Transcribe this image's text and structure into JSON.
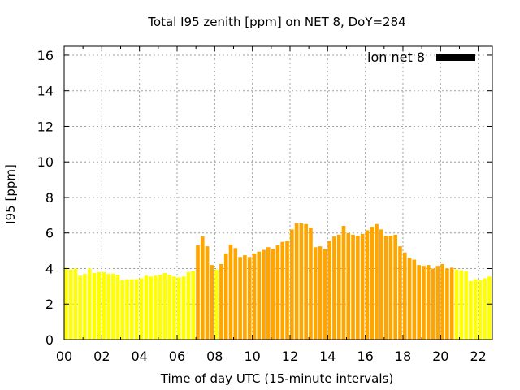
{
  "chart_data": {
    "type": "bar",
    "title": "Total I95 zenith [ppm] on NET 8, DoY=284",
    "xlabel": "Time of day UTC (15-minute intervals)",
    "ylabel": "I95 [ppm]",
    "xlim": [
      0,
      22.75
    ],
    "ylim": [
      0,
      16.5
    ],
    "x_ticks": [
      "00",
      "02",
      "04",
      "06",
      "08",
      "10",
      "12",
      "14",
      "16",
      "18",
      "20",
      "22"
    ],
    "y_ticks": [
      "0",
      "2",
      "4",
      "6",
      "8",
      "10",
      "12",
      "14",
      "16"
    ],
    "grid": true,
    "legend": {
      "label": "ion net 8",
      "color": "#000000",
      "position": "top-right"
    },
    "colors": {
      "low": "#ffff00",
      "high": "#ffa500"
    },
    "interval_hours": 0.25,
    "series": [
      {
        "values": [
          4.05,
          3.95,
          4.0,
          3.6,
          3.7,
          4.0,
          3.75,
          3.8,
          3.8,
          3.7,
          3.7,
          3.65,
          3.35,
          3.4,
          3.4,
          3.4,
          3.45,
          3.6,
          3.55,
          3.6,
          3.65,
          3.75,
          3.65,
          3.55,
          3.5,
          3.55,
          3.8,
          3.85,
          5.3,
          5.8,
          5.25,
          4.2,
          3.95,
          4.25,
          4.85,
          5.35,
          5.15,
          4.65,
          4.75,
          4.65,
          4.85,
          4.95,
          5.05,
          5.2,
          5.1,
          5.3,
          5.5,
          5.55,
          6.2,
          6.55,
          6.55,
          6.5,
          6.3,
          5.2,
          5.25,
          5.1,
          5.55,
          5.8,
          5.9,
          6.4,
          6.0,
          5.9,
          5.85,
          5.95,
          6.15,
          6.35,
          6.5,
          6.2,
          5.85,
          5.85,
          5.9,
          5.25,
          4.9,
          4.6,
          4.5,
          4.2,
          4.15,
          4.2,
          4.0,
          4.15,
          4.25,
          4.0,
          4.05,
          3.95,
          3.9,
          3.85,
          3.3,
          3.4,
          3.35,
          3.45,
          3.55
        ],
        "colors": [
          "y",
          "y",
          "y",
          "y",
          "y",
          "y",
          "y",
          "y",
          "y",
          "y",
          "y",
          "y",
          "y",
          "y",
          "y",
          "y",
          "y",
          "y",
          "y",
          "y",
          "y",
          "y",
          "y",
          "y",
          "y",
          "y",
          "y",
          "y",
          "o",
          "o",
          "o",
          "o",
          "y",
          "o",
          "o",
          "o",
          "o",
          "o",
          "o",
          "o",
          "o",
          "o",
          "o",
          "o",
          "o",
          "o",
          "o",
          "o",
          "o",
          "o",
          "o",
          "o",
          "o",
          "o",
          "o",
          "o",
          "o",
          "o",
          "o",
          "o",
          "o",
          "o",
          "o",
          "o",
          "o",
          "o",
          "o",
          "o",
          "o",
          "o",
          "o",
          "o",
          "o",
          "o",
          "o",
          "o",
          "o",
          "o",
          "o",
          "o",
          "o",
          "o",
          "o",
          "y",
          "y",
          "y",
          "y",
          "y",
          "y",
          "y",
          "y"
        ]
      }
    ]
  }
}
